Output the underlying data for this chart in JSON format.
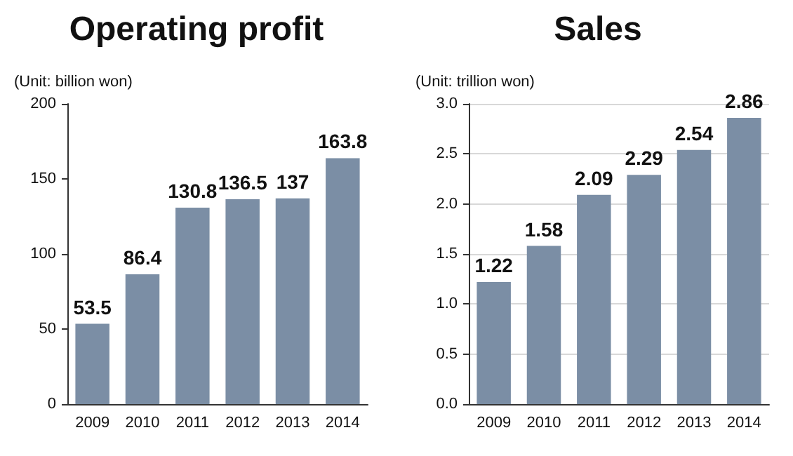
{
  "chart_data": [
    {
      "type": "bar",
      "title": "Operating profit",
      "ylabel": "(Unit: billion won)",
      "categories": [
        "2009",
        "2010",
        "2011",
        "2012",
        "2013",
        "2014"
      ],
      "values": [
        53.5,
        86.4,
        130.8,
        136.5,
        137,
        163.8
      ],
      "color": "#7b8ea5",
      "ylim": [
        0,
        200
      ],
      "yticks": [
        0,
        50,
        100,
        150,
        200
      ],
      "grid": false,
      "data_labels": true
    },
    {
      "type": "bar",
      "title": "Sales",
      "ylabel": "(Unit: trillion won)",
      "categories": [
        "2009",
        "2010",
        "2011",
        "2012",
        "2013",
        "2014"
      ],
      "values": [
        1.22,
        1.58,
        2.09,
        2.29,
        2.54,
        2.86
      ],
      "color": "#7b8ea5",
      "ylim": [
        0,
        3
      ],
      "yticks": [
        {
          "value": 0,
          "label": "0.0"
        },
        0.5,
        {
          "value": 1,
          "label": "1.0"
        },
        1.5,
        {
          "value": 2,
          "label": "2.0"
        },
        2.5,
        {
          "value": 3,
          "label": "3.0"
        }
      ],
      "grid": "y",
      "data_labels": true
    }
  ]
}
